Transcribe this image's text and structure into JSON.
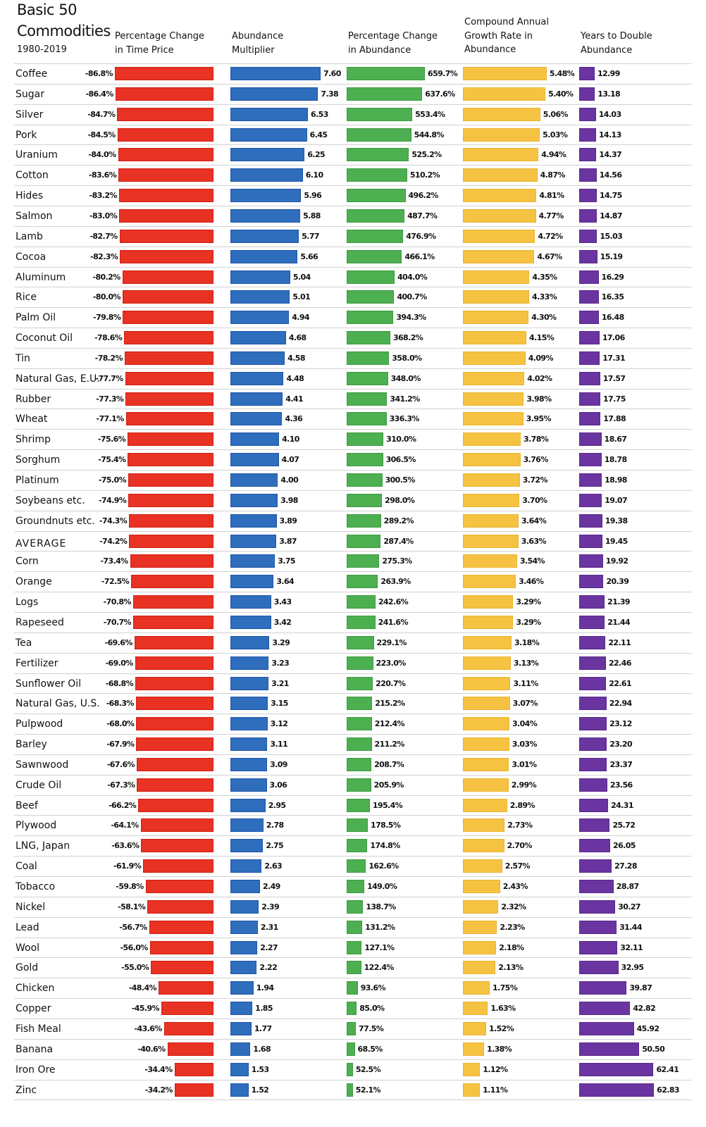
{
  "chart_data": {
    "type": "table",
    "title_line1": "Basic 50",
    "title_line2": "Commodities",
    "subtitle": "1980-2019",
    "columns": [
      {
        "key": "pct_time_price",
        "label": "Percentage Change\n in Time Price",
        "color": "#e83224"
      },
      {
        "key": "abundance_multiplier",
        "label": "Abundance\nMultiplier",
        "color": "#2f6dbd"
      },
      {
        "key": "pct_abundance",
        "label": "Percentage Change\nin Abundance",
        "color": "#4caf50"
      },
      {
        "key": "cagr",
        "label": "Compound Annual\nGrowth Rate in\nAbundance",
        "color": "#f5c242"
      },
      {
        "key": "years_to_double",
        "label": "Years to Double\n Abundance",
        "color": "#6a35a0"
      }
    ],
    "rows": [
      [
        "Coffee",
        -86.8,
        7.6,
        659.7,
        5.48,
        12.99
      ],
      [
        "Sugar",
        -86.4,
        7.38,
        637.6,
        5.4,
        13.18
      ],
      [
        "Silver",
        -84.7,
        6.53,
        553.4,
        5.06,
        14.03
      ],
      [
        "Pork",
        -84.5,
        6.45,
        544.8,
        5.03,
        14.13
      ],
      [
        "Uranium",
        -84.0,
        6.25,
        525.2,
        4.94,
        14.37
      ],
      [
        "Cotton",
        -83.6,
        6.1,
        510.2,
        4.87,
        14.56
      ],
      [
        "Hides",
        -83.2,
        5.96,
        496.2,
        4.81,
        14.75
      ],
      [
        "Salmon",
        -83.0,
        5.88,
        487.7,
        4.77,
        14.87
      ],
      [
        "Lamb",
        -82.7,
        5.77,
        476.9,
        4.72,
        15.03
      ],
      [
        "Cocoa",
        -82.3,
        5.66,
        466.1,
        4.67,
        15.19
      ],
      [
        "Aluminum",
        -80.2,
        5.04,
        404.0,
        4.35,
        16.29
      ],
      [
        "Rice",
        -80.0,
        5.01,
        400.7,
        4.33,
        16.35
      ],
      [
        "Palm Oil",
        -79.8,
        4.94,
        394.3,
        4.3,
        16.48
      ],
      [
        "Coconut Oil",
        -78.6,
        4.68,
        368.2,
        4.15,
        17.06
      ],
      [
        "Tin",
        -78.2,
        4.58,
        358.0,
        4.09,
        17.31
      ],
      [
        "Natural Gas, E.U.",
        -77.7,
        4.48,
        348.0,
        4.02,
        17.57
      ],
      [
        "Rubber",
        -77.3,
        4.41,
        341.2,
        3.98,
        17.75
      ],
      [
        "Wheat",
        -77.1,
        4.36,
        336.3,
        3.95,
        17.88
      ],
      [
        "Shrimp",
        -75.6,
        4.1,
        310.0,
        3.78,
        18.67
      ],
      [
        "Sorghum",
        -75.4,
        4.07,
        306.5,
        3.76,
        18.78
      ],
      [
        "Platinum",
        -75.0,
        4.0,
        300.5,
        3.72,
        18.98
      ],
      [
        "Soybeans etc.",
        -74.9,
        3.98,
        298.0,
        3.7,
        19.07
      ],
      [
        "Groundnuts etc.",
        -74.3,
        3.89,
        289.2,
        3.64,
        19.38
      ],
      [
        "AVERAGE",
        -74.2,
        3.87,
        287.4,
        3.63,
        19.45
      ],
      [
        "Corn",
        -73.4,
        3.75,
        275.3,
        3.54,
        19.92
      ],
      [
        "Orange",
        -72.5,
        3.64,
        263.9,
        3.46,
        20.39
      ],
      [
        "Logs",
        -70.8,
        3.43,
        242.6,
        3.29,
        21.39
      ],
      [
        "Rapeseed",
        -70.7,
        3.42,
        241.6,
        3.29,
        21.44
      ],
      [
        "Tea",
        -69.6,
        3.29,
        229.1,
        3.18,
        22.11
      ],
      [
        "Fertilizer",
        -69.0,
        3.23,
        223.0,
        3.13,
        22.46
      ],
      [
        "Sunflower Oil",
        -68.8,
        3.21,
        220.7,
        3.11,
        22.61
      ],
      [
        "Natural Gas, U.S.",
        -68.3,
        3.15,
        215.2,
        3.07,
        22.94
      ],
      [
        "Pulpwood",
        -68.0,
        3.12,
        212.4,
        3.04,
        23.12
      ],
      [
        "Barley",
        -67.9,
        3.11,
        211.2,
        3.03,
        23.2
      ],
      [
        "Sawnwood",
        -67.6,
        3.09,
        208.7,
        3.01,
        23.37
      ],
      [
        "Crude Oil",
        -67.3,
        3.06,
        205.9,
        2.99,
        23.56
      ],
      [
        "Beef",
        -66.2,
        2.95,
        195.4,
        2.89,
        24.31
      ],
      [
        "Plywood",
        -64.1,
        2.78,
        178.5,
        2.73,
        25.72
      ],
      [
        "LNG, Japan",
        -63.6,
        2.75,
        174.8,
        2.7,
        26.05
      ],
      [
        "Coal",
        -61.9,
        2.63,
        162.6,
        2.57,
        27.28
      ],
      [
        "Tobacco",
        -59.8,
        2.49,
        149.0,
        2.43,
        28.87
      ],
      [
        "Nickel",
        -58.1,
        2.39,
        138.7,
        2.32,
        30.27
      ],
      [
        "Lead",
        -56.7,
        2.31,
        131.2,
        2.23,
        31.44
      ],
      [
        "Wool",
        -56.0,
        2.27,
        127.1,
        2.18,
        32.11
      ],
      [
        "Gold",
        -55.0,
        2.22,
        122.4,
        2.13,
        32.95
      ],
      [
        "Chicken",
        -48.4,
        1.94,
        93.6,
        1.75,
        39.87
      ],
      [
        "Copper",
        -45.9,
        1.85,
        85.0,
        1.63,
        42.82
      ],
      [
        "Fish Meal",
        -43.6,
        1.77,
        77.5,
        1.52,
        45.92
      ],
      [
        "Banana",
        -40.6,
        1.68,
        68.5,
        1.38,
        50.5
      ],
      [
        "Iron Ore",
        -34.4,
        1.53,
        52.5,
        1.12,
        62.41
      ],
      [
        "Zinc",
        -34.2,
        1.52,
        52.1,
        1.11,
        62.83
      ]
    ]
  }
}
